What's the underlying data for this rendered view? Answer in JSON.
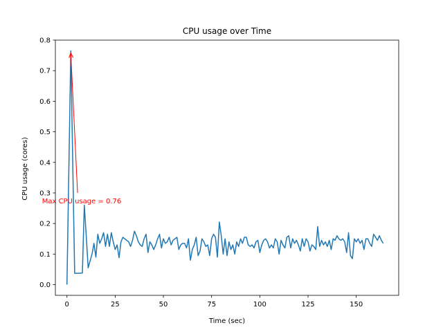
{
  "chart_data": {
    "type": "line",
    "title": "CPU usage over Time",
    "xlabel": "Time (sec)",
    "ylabel": "CPU usage (cores)",
    "xlim": [
      -6,
      172
    ],
    "ylim": [
      -0.035,
      0.8
    ],
    "x_ticks": [
      0,
      25,
      50,
      75,
      100,
      125,
      150
    ],
    "y_ticks": [
      0.0,
      0.1,
      0.2,
      0.3,
      0.4,
      0.5,
      0.6,
      0.7,
      0.8
    ],
    "y_tick_labels": [
      "0.0",
      "0.1",
      "0.2",
      "0.3",
      "0.4",
      "0.5",
      "0.6",
      "0.7",
      "0.8"
    ],
    "grid": false,
    "series_color": "#1f77b4",
    "annotation_color": "#ff0000",
    "series": [
      {
        "name": "CPU usage",
        "x": [
          0,
          2,
          4,
          6,
          8,
          9,
          10,
          11,
          13,
          14,
          15,
          16,
          17,
          18,
          19,
          20,
          21,
          22,
          23,
          24,
          25,
          26,
          27,
          28,
          29,
          30,
          31,
          32,
          33,
          34,
          35,
          36,
          37,
          38,
          39,
          40,
          41,
          42,
          43,
          44,
          45,
          46,
          47,
          48,
          49,
          50,
          51,
          52,
          53,
          54,
          55,
          56,
          57,
          58,
          59,
          60,
          61,
          62,
          63,
          64,
          65,
          66,
          67,
          68,
          69,
          70,
          71,
          72,
          73,
          74,
          75,
          76,
          77,
          78,
          79,
          80,
          81,
          82,
          83,
          84,
          85,
          86,
          87,
          88,
          89,
          90,
          91,
          92,
          93,
          94,
          95,
          96,
          97,
          98,
          99,
          100,
          101,
          102,
          103,
          104,
          105,
          106,
          107,
          108,
          109,
          110,
          111,
          112,
          113,
          114,
          115,
          116,
          117,
          118,
          119,
          120,
          121,
          122,
          123,
          124,
          125,
          126,
          127,
          128,
          129,
          130,
          131,
          132,
          133,
          134,
          135,
          136,
          137,
          138,
          139,
          140,
          141,
          142,
          143,
          144,
          145,
          146,
          147,
          148,
          149,
          150,
          151,
          152,
          153,
          154,
          155,
          156,
          157,
          158,
          159,
          160,
          161,
          162,
          163,
          164
        ],
        "values": [
          0.0,
          0.765,
          0.037,
          0.037,
          0.038,
          0.26,
          0.16,
          0.055,
          0.1,
          0.135,
          0.09,
          0.165,
          0.135,
          0.15,
          0.17,
          0.125,
          0.165,
          0.125,
          0.17,
          0.14,
          0.115,
          0.13,
          0.088,
          0.14,
          0.155,
          0.15,
          0.145,
          0.14,
          0.125,
          0.145,
          0.175,
          0.16,
          0.14,
          0.13,
          0.125,
          0.15,
          0.165,
          0.105,
          0.14,
          0.13,
          0.115,
          0.13,
          0.15,
          0.165,
          0.12,
          0.15,
          0.135,
          0.14,
          0.155,
          0.13,
          0.145,
          0.15,
          0.155,
          0.115,
          0.13,
          0.135,
          0.135,
          0.12,
          0.15,
          0.08,
          0.115,
          0.13,
          0.155,
          0.095,
          0.11,
          0.15,
          0.14,
          0.125,
          0.13,
          0.095,
          0.15,
          0.165,
          0.155,
          0.09,
          0.205,
          0.16,
          0.1,
          0.15,
          0.095,
          0.14,
          0.115,
          0.13,
          0.1,
          0.14,
          0.125,
          0.15,
          0.135,
          0.155,
          0.155,
          0.13,
          0.125,
          0.13,
          0.12,
          0.14,
          0.145,
          0.105,
          0.13,
          0.145,
          0.15,
          0.14,
          0.12,
          0.13,
          0.12,
          0.15,
          0.14,
          0.1,
          0.145,
          0.13,
          0.12,
          0.155,
          0.16,
          0.12,
          0.15,
          0.135,
          0.145,
          0.13,
          0.11,
          0.15,
          0.125,
          0.15,
          0.14,
          0.11,
          0.13,
          0.125,
          0.115,
          0.19,
          0.125,
          0.145,
          0.13,
          0.14,
          0.125,
          0.145,
          0.115,
          0.15,
          0.145,
          0.16,
          0.15,
          0.145,
          0.15,
          0.14,
          0.105,
          0.17,
          0.095,
          0.085,
          0.15,
          0.14,
          0.15,
          0.135,
          0.145,
          0.115,
          0.15,
          0.15,
          0.135,
          0.125,
          0.165,
          0.155,
          0.145,
          0.16,
          0.145,
          0.135
        ]
      }
    ],
    "annotation": {
      "text": "Max CPU usage = 0.76",
      "point": [
        2,
        0.765
      ],
      "text_anchor_data": [
        5.5,
        0.3
      ]
    }
  }
}
